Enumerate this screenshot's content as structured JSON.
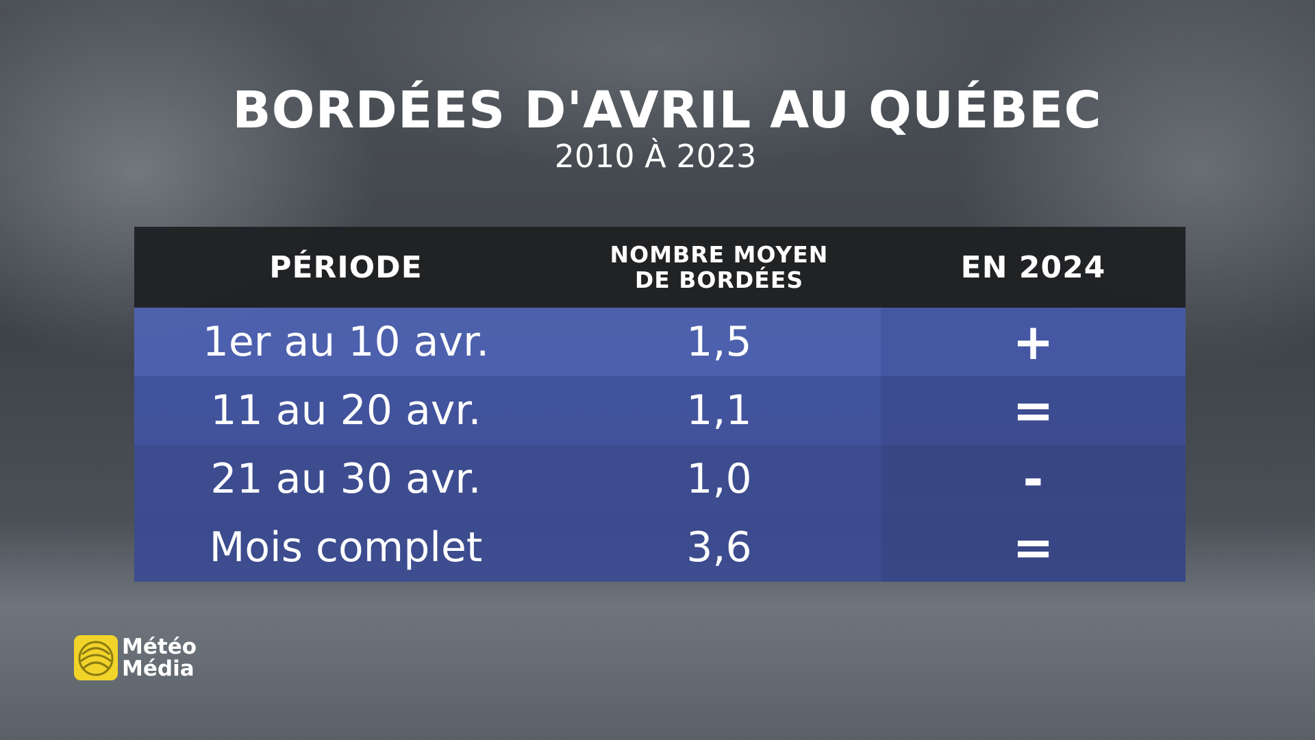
{
  "header": {
    "title": "BORDÉES D'AVRIL AU QUÉBEC",
    "subtitle": "2010 À 2023"
  },
  "table": {
    "columns": [
      [
        "PÉRIODE"
      ],
      [
        "NOMBRE MOYEN",
        "DE BORDÉES"
      ],
      [
        "EN 2024"
      ]
    ],
    "rows": [
      [
        "1er au 10 avr.",
        "1,5",
        "+"
      ],
      [
        "11 au 20 avr.",
        "1,1",
        "="
      ],
      [
        "21 au 30 avr.",
        "1,0",
        "-"
      ],
      [
        "Mois complet",
        "3,6",
        "="
      ]
    ]
  },
  "logo": {
    "lines": [
      "Météo",
      "Média"
    ]
  }
}
